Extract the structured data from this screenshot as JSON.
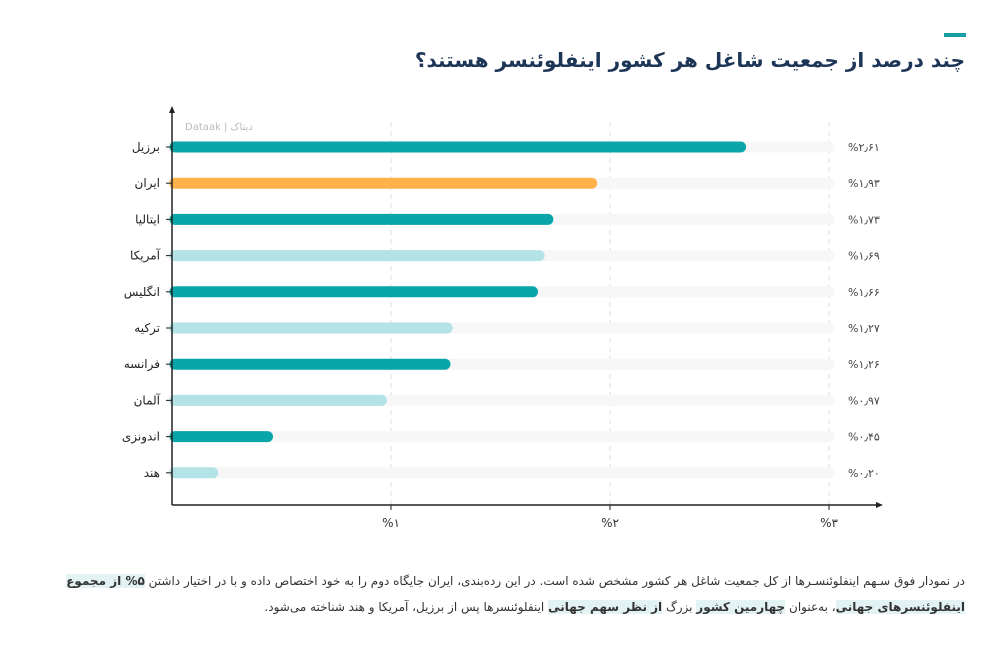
{
  "title": "چند درصد از جمعیت شاغل هر کشور اینفلوئنسر هستند؟",
  "chart_data": {
    "type": "bar",
    "orientation": "horizontal",
    "watermark": "Dataak | دیتاک",
    "categories": [
      "برزیل",
      "ایران",
      "ایتالیا",
      "آمریکا",
      "انگلیس",
      "ترکیه",
      "فرانسه",
      "آلمان",
      "اندونزی",
      "هند"
    ],
    "values": [
      2.61,
      1.93,
      1.73,
      1.69,
      1.66,
      1.27,
      1.26,
      0.97,
      0.45,
      0.2
    ],
    "data_labels": [
      "%۲٫۶۱",
      "%۱٫۹۳",
      "%۱٫۷۳",
      "%۱٫۶۹",
      "%۱٫۶۶",
      "%۱٫۲۷",
      "%۱٫۲۶",
      "%۰٫۹۷",
      "%۰٫۴۵",
      "%۰٫۲۰"
    ],
    "bar_colors": [
      "#0aa5a8",
      "#ffb24a",
      "#0aa5a8",
      "#b3e3e6",
      "#0aa5a8",
      "#b3e3e6",
      "#0aa5a8",
      "#b3e3e6",
      "#0aa5a8",
      "#b3e3e6"
    ],
    "track_color": "#f7f7f7",
    "xlim": [
      0,
      3
    ],
    "x_ticks": [
      1,
      2,
      3
    ],
    "x_tick_labels": [
      "%۱",
      "%۲",
      "%۳"
    ],
    "grid": "vertical dashed"
  },
  "description": {
    "line1": "در نمودار فوق سـهم اینفلوئنسـرها از کل جمعیت شاغل هر کشور مشخص شده است. در این رده‌بندی، ایران جایگاه دوم را به خود اختصاص داده و با در اختیار داشتن",
    "seg1": "۵% از مجموع اینفلوئنسرهای جهانی",
    "seg2": "، به‌عنوان ",
    "seg3": "چهارمین کشور",
    "seg4": " بزرگ ",
    "seg5": "از نظر سهم جهانی",
    "seg6": " اینفلوئنسرها پس از برزیل، آمریکا و هند شناخته می‌شود."
  }
}
